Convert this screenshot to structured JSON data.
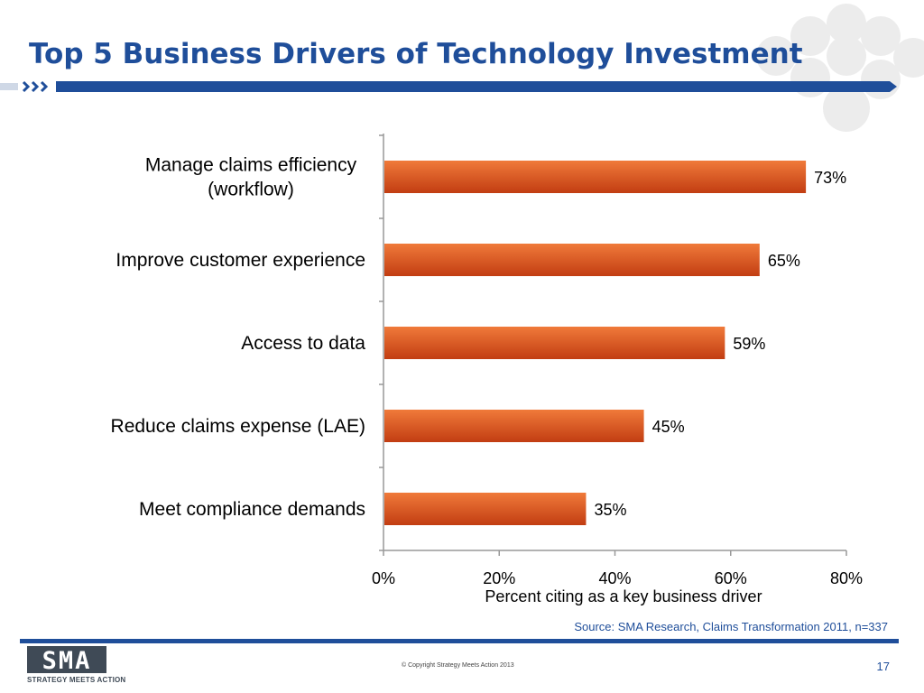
{
  "slide": {
    "title": "Top 5 Business Drivers of Technology Investment",
    "source": "Source: SMA Research, Claims Transformation 2011, n=337",
    "copyright": "© Copyright Strategy Meets Action 2013",
    "page_number": "17",
    "logo_text": "SMA",
    "logo_tagline": "STRATEGY MEETS ACTION"
  },
  "colors": {
    "accent": "#1f4e9a",
    "bar_top": "#f07a3a",
    "bar_bottom": "#c23d12"
  },
  "chart_data": {
    "type": "bar",
    "orientation": "horizontal",
    "categories": [
      "Manage claims efficiency (workflow)",
      "Improve customer experience",
      "Access to data",
      "Reduce claims expense (LAE)",
      "Meet compliance demands"
    ],
    "category_lines": [
      [
        "Manage claims efficiency",
        "(workflow)"
      ],
      [
        "Improve customer experience"
      ],
      [
        "Access to data"
      ],
      [
        "Reduce claims expense (LAE)"
      ],
      [
        "Meet compliance demands"
      ]
    ],
    "values": [
      73,
      65,
      59,
      45,
      35
    ],
    "data_labels": [
      "73%",
      "65%",
      "59%",
      "45%",
      "35%"
    ],
    "xlabel": "Percent citing as a key business driver",
    "xlim": [
      0,
      80
    ],
    "xticks": [
      0,
      20,
      40,
      60,
      80
    ],
    "xtick_labels": [
      "0%",
      "20%",
      "40%",
      "60%",
      "80%"
    ],
    "grid": false,
    "legend": "none"
  }
}
